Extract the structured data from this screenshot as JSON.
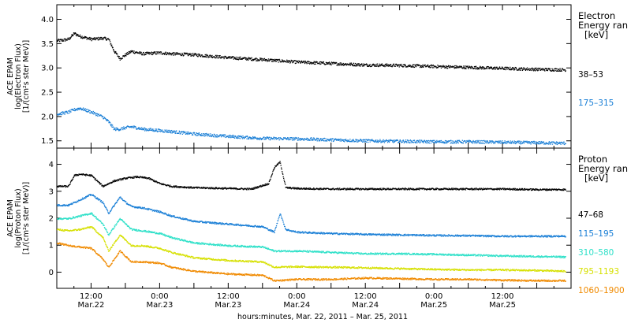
{
  "chart_data": [
    {
      "type": "scatter",
      "panel": "electron",
      "ylabel_lines": [
        "ACE EPAM",
        "log(Electron Flux)",
        "[1/(cm²s ster MeV)]"
      ],
      "ylim": [
        1.35,
        4.3
      ],
      "yticks": [
        1.5,
        2.0,
        2.5,
        3.0,
        3.5,
        4.0
      ],
      "ytick_labels": [
        "1.5",
        "2.0",
        "2.5",
        "3.0",
        "3.5",
        "4.0"
      ],
      "legend_title_lines": [
        "Electron",
        "Energy ran",
        "[keV]"
      ],
      "series": [
        {
          "name": "38–53",
          "color": "#000000",
          "x": [
            0,
            1,
            2,
            3,
            4,
            6,
            8,
            9,
            10,
            11,
            12,
            13,
            15,
            18,
            20,
            24,
            30,
            36,
            42,
            48,
            54,
            60,
            66,
            72,
            78,
            84,
            89
          ],
          "y": [
            3.57,
            3.58,
            3.6,
            3.72,
            3.66,
            3.6,
            3.62,
            3.6,
            3.35,
            3.2,
            3.28,
            3.35,
            3.3,
            3.32,
            3.3,
            3.28,
            3.22,
            3.18,
            3.13,
            3.1,
            3.07,
            3.06,
            3.04,
            3.02,
            3.0,
            2.98,
            2.97
          ]
        },
        {
          "name": "175–315",
          "color": "#1a7fd6",
          "x": [
            0,
            2,
            3,
            4,
            6,
            8,
            9,
            10,
            11,
            12,
            13,
            15,
            18,
            20,
            24,
            30,
            36,
            42,
            48,
            54,
            60,
            66,
            72,
            78,
            84,
            89
          ],
          "y": [
            2.06,
            2.1,
            2.15,
            2.18,
            2.1,
            2.0,
            1.9,
            1.75,
            1.75,
            1.78,
            1.8,
            1.75,
            1.72,
            1.7,
            1.65,
            1.6,
            1.56,
            1.55,
            1.53,
            1.51,
            1.5,
            1.49,
            1.49,
            1.48,
            1.47,
            1.46
          ]
        }
      ]
    },
    {
      "type": "scatter",
      "panel": "proton",
      "ylabel_lines": [
        "ACE EPAM",
        "log(Proton Flux)",
        "[1/(cm²s ster MeV)]"
      ],
      "xlabel": "hours:minutes, Mar. 22, 2011 – Mar. 25, 2011",
      "ylim": [
        -0.6,
        4.6
      ],
      "yticks": [
        0,
        1,
        2,
        3,
        4
      ],
      "ytick_labels": [
        "0",
        "1",
        "2",
        "3",
        "4"
      ],
      "legend_title_lines": [
        "Proton",
        "Energy ran",
        "[keV]"
      ],
      "xticks": [
        6,
        18,
        30,
        42,
        54,
        66,
        78,
        90
      ],
      "xtick_labels": [
        [
          "12:00",
          "Mar.22"
        ],
        [
          "0:00",
          "Mar.23"
        ],
        [
          "12:00",
          "Mar.23"
        ],
        [
          "0:00",
          "Mar.24"
        ],
        [
          "12:00",
          "Mar.24"
        ],
        [
          "0:00",
          "Mar.25"
        ],
        [
          "12:00",
          "Mar.25"
        ],
        [
          "",
          ""
        ]
      ],
      "xlim": [
        0,
        90
      ],
      "series": [
        {
          "name": "47–68",
          "color": "#000000",
          "x": [
            0,
            2,
            3,
            4,
            6,
            8,
            9,
            10,
            12,
            14,
            16,
            18,
            20,
            24,
            30,
            34,
            37,
            38,
            39,
            40,
            42,
            48,
            54,
            60,
            66,
            72,
            78,
            84,
            89
          ],
          "y": [
            3.2,
            3.2,
            3.6,
            3.65,
            3.6,
            3.2,
            3.3,
            3.4,
            3.5,
            3.55,
            3.5,
            3.3,
            3.2,
            3.15,
            3.12,
            3.1,
            3.3,
            3.9,
            4.1,
            3.15,
            3.12,
            3.1,
            3.1,
            3.1,
            3.1,
            3.1,
            3.1,
            3.08,
            3.08
          ]
        },
        {
          "name": "115–195",
          "color": "#1a7fd6",
          "x": [
            0,
            2,
            4,
            6,
            8,
            9,
            10,
            11,
            12,
            13,
            15,
            18,
            20,
            24,
            30,
            36,
            38,
            39,
            40,
            42,
            48,
            54,
            60,
            66,
            72,
            78,
            84,
            89
          ],
          "y": [
            2.5,
            2.5,
            2.7,
            2.9,
            2.6,
            2.2,
            2.5,
            2.8,
            2.6,
            2.45,
            2.4,
            2.25,
            2.1,
            1.9,
            1.8,
            1.7,
            1.5,
            2.2,
            1.6,
            1.5,
            1.45,
            1.42,
            1.4,
            1.38,
            1.37,
            1.35,
            1.35,
            1.35
          ]
        },
        {
          "name": "310–580",
          "color": "#2de0c8",
          "x": [
            0,
            2,
            4,
            6,
            8,
            9,
            10,
            11,
            12,
            13,
            15,
            18,
            20,
            24,
            30,
            36,
            38,
            42,
            48,
            54,
            60,
            66,
            72,
            78,
            84,
            89
          ],
          "y": [
            2.0,
            2.0,
            2.1,
            2.2,
            1.8,
            1.4,
            1.7,
            2.0,
            1.8,
            1.6,
            1.55,
            1.45,
            1.3,
            1.1,
            1.0,
            0.95,
            0.8,
            0.8,
            0.75,
            0.7,
            0.7,
            0.68,
            0.65,
            0.62,
            0.6,
            0.58
          ]
        },
        {
          "name": "795–1193",
          "color": "#d6e000",
          "x": [
            0,
            2,
            4,
            6,
            8,
            9,
            10,
            11,
            12,
            13,
            15,
            18,
            20,
            24,
            30,
            36,
            38,
            42,
            48,
            54,
            60,
            66,
            72,
            78,
            84,
            89
          ],
          "y": [
            1.6,
            1.55,
            1.6,
            1.7,
            1.3,
            0.8,
            1.1,
            1.4,
            1.2,
            1.0,
            1.0,
            0.9,
            0.75,
            0.55,
            0.45,
            0.4,
            0.2,
            0.22,
            0.2,
            0.18,
            0.15,
            0.12,
            0.1,
            0.1,
            0.08,
            0.05
          ]
        },
        {
          "name": "1060–1900",
          "color": "#f08a00",
          "x": [
            0,
            2,
            4,
            6,
            8,
            9,
            10,
            11,
            12,
            13,
            15,
            18,
            20,
            24,
            30,
            36,
            38,
            42,
            48,
            54,
            60,
            66,
            72,
            78,
            84,
            89
          ],
          "y": [
            1.1,
            1.0,
            0.95,
            0.9,
            0.5,
            0.2,
            0.5,
            0.8,
            0.6,
            0.4,
            0.4,
            0.35,
            0.2,
            0.05,
            -0.05,
            -0.1,
            -0.3,
            -0.25,
            -0.25,
            -0.2,
            -0.22,
            -0.25,
            -0.25,
            -0.28,
            -0.3,
            -0.3
          ]
        }
      ]
    }
  ]
}
